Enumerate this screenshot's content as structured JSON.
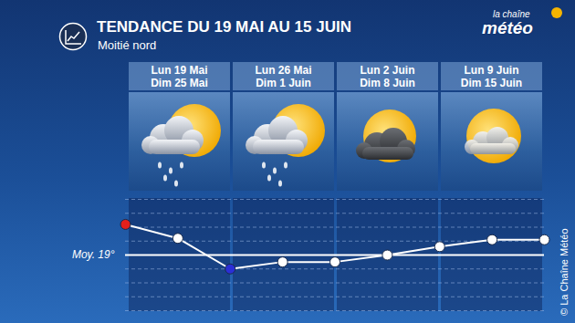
{
  "chart_data": {
    "type": "line",
    "title": "TENDANCE DU 19 MAI AU 15 JUIN",
    "subtitle": "Moitié nord",
    "brand": [
      "la chaîne",
      "météo"
    ],
    "credit": "© La Chaîne Météo",
    "periods": [
      [
        "Lun 19 Mai",
        "Dim 25 Mai"
      ],
      [
        "Lun 26 Mai",
        "Dim 1 Juin"
      ],
      [
        "Lun 2 Juin",
        "Dim 8 Juin"
      ],
      [
        "Lun 9 Juin",
        "Dim 15 Juin"
      ]
    ],
    "x": [
      0,
      1,
      2,
      3,
      4,
      5,
      6,
      7,
      8
    ],
    "values": [
      21.2,
      20.2,
      18,
      18.5,
      18.5,
      19,
      19.6,
      20.1,
      20.1
    ],
    "color": "#ffffff",
    "colors": [
      "#e3201b",
      "#ffffff",
      "#2b2fd6",
      "#ffffff",
      "#ffffff",
      "#ffffff",
      "#ffffff",
      "#ffffff",
      "#ffffff"
    ],
    "marker": "circle",
    "reference": {
      "value": 19,
      "label": "Moy. 19°"
    },
    "xlim": [
      0,
      8
    ],
    "ylim": [
      15,
      23
    ],
    "yticks": [
      15,
      16,
      17,
      18,
      19,
      20,
      21,
      22,
      23
    ],
    "grid": true,
    "tick_labels": false
  }
}
